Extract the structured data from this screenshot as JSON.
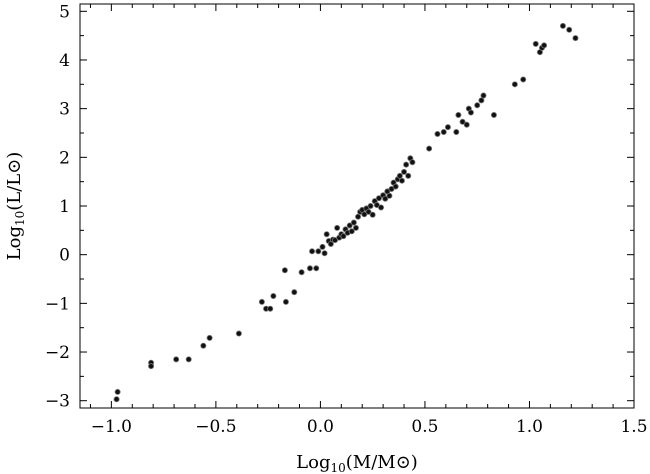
{
  "chart_data": {
    "type": "scatter",
    "title": "",
    "xlabel": "Log10(M/M⊙)",
    "ylabel": "Log10(L/L⊙)",
    "xlim": [
      -1.15,
      1.5
    ],
    "ylim": [
      -3.15,
      5.15
    ],
    "x_ticks": [
      -1.0,
      -0.5,
      0.0,
      0.5,
      1.0,
      1.5
    ],
    "x_tick_labels": [
      "−1.0",
      "−0.5",
      "0.0",
      "0.5",
      "1.0",
      "1.5"
    ],
    "y_ticks": [
      -3,
      -2,
      -1,
      0,
      1,
      2,
      3,
      4,
      5
    ],
    "y_tick_labels": [
      "−3",
      "−2",
      "−1",
      "0",
      "1",
      "2",
      "3",
      "4",
      "5"
    ],
    "grid": false,
    "legend": "none",
    "points": [
      {
        "x": -0.97,
        "y": -2.82
      },
      {
        "x": -0.975,
        "y": -2.97
      },
      {
        "x": -0.81,
        "y": -2.22
      },
      {
        "x": -0.81,
        "y": -2.29
      },
      {
        "x": -0.69,
        "y": -2.15
      },
      {
        "x": -0.63,
        "y": -2.15
      },
      {
        "x": -0.56,
        "y": -1.87
      },
      {
        "x": -0.53,
        "y": -1.71
      },
      {
        "x": -0.39,
        "y": -1.62
      },
      {
        "x": -0.28,
        "y": -0.97
      },
      {
        "x": -0.26,
        "y": -1.11
      },
      {
        "x": -0.24,
        "y": -1.11
      },
      {
        "x": -0.225,
        "y": -0.85
      },
      {
        "x": -0.165,
        "y": -0.97
      },
      {
        "x": -0.17,
        "y": -0.32
      },
      {
        "x": -0.125,
        "y": -0.77
      },
      {
        "x": -0.09,
        "y": -0.36
      },
      {
        "x": -0.05,
        "y": -0.28
      },
      {
        "x": -0.04,
        "y": 0.07
      },
      {
        "x": -0.02,
        "y": -0.28
      },
      {
        "x": -0.01,
        "y": 0.07
      },
      {
        "x": 0.01,
        "y": 0.16
      },
      {
        "x": 0.02,
        "y": 0.03
      },
      {
        "x": 0.03,
        "y": 0.42
      },
      {
        "x": 0.04,
        "y": 0.28
      },
      {
        "x": 0.05,
        "y": 0.22
      },
      {
        "x": 0.06,
        "y": 0.31
      },
      {
        "x": 0.07,
        "y": 0.3
      },
      {
        "x": 0.08,
        "y": 0.55
      },
      {
        "x": 0.09,
        "y": 0.35
      },
      {
        "x": 0.1,
        "y": 0.42
      },
      {
        "x": 0.11,
        "y": 0.38
      },
      {
        "x": 0.12,
        "y": 0.52
      },
      {
        "x": 0.13,
        "y": 0.45
      },
      {
        "x": 0.14,
        "y": 0.6
      },
      {
        "x": 0.15,
        "y": 0.48
      },
      {
        "x": 0.16,
        "y": 0.66
      },
      {
        "x": 0.17,
        "y": 0.55
      },
      {
        "x": 0.18,
        "y": 0.78
      },
      {
        "x": 0.19,
        "y": 0.88
      },
      {
        "x": 0.2,
        "y": 0.92
      },
      {
        "x": 0.21,
        "y": 0.83
      },
      {
        "x": 0.22,
        "y": 0.95
      },
      {
        "x": 0.23,
        "y": 0.88
      },
      {
        "x": 0.24,
        "y": 1.0
      },
      {
        "x": 0.25,
        "y": 0.82
      },
      {
        "x": 0.26,
        "y": 1.1
      },
      {
        "x": 0.27,
        "y": 1.02
      },
      {
        "x": 0.28,
        "y": 1.16
      },
      {
        "x": 0.29,
        "y": 0.97
      },
      {
        "x": 0.3,
        "y": 1.22
      },
      {
        "x": 0.31,
        "y": 1.15
      },
      {
        "x": 0.32,
        "y": 1.3
      },
      {
        "x": 0.33,
        "y": 1.21
      },
      {
        "x": 0.34,
        "y": 1.35
      },
      {
        "x": 0.35,
        "y": 1.48
      },
      {
        "x": 0.36,
        "y": 1.4
      },
      {
        "x": 0.37,
        "y": 1.55
      },
      {
        "x": 0.38,
        "y": 1.62
      },
      {
        "x": 0.39,
        "y": 1.52
      },
      {
        "x": 0.4,
        "y": 1.7
      },
      {
        "x": 0.41,
        "y": 1.85
      },
      {
        "x": 0.42,
        "y": 1.62
      },
      {
        "x": 0.43,
        "y": 1.98
      },
      {
        "x": 0.44,
        "y": 1.9
      },
      {
        "x": 0.52,
        "y": 2.18
      },
      {
        "x": 0.56,
        "y": 2.48
      },
      {
        "x": 0.59,
        "y": 2.52
      },
      {
        "x": 0.61,
        "y": 2.62
      },
      {
        "x": 0.65,
        "y": 2.52
      },
      {
        "x": 0.66,
        "y": 2.87
      },
      {
        "x": 0.68,
        "y": 2.73
      },
      {
        "x": 0.7,
        "y": 2.67
      },
      {
        "x": 0.71,
        "y": 3.0
      },
      {
        "x": 0.72,
        "y": 2.92
      },
      {
        "x": 0.75,
        "y": 3.07
      },
      {
        "x": 0.77,
        "y": 3.17
      },
      {
        "x": 0.78,
        "y": 3.27
      },
      {
        "x": 0.83,
        "y": 2.87
      },
      {
        "x": 0.93,
        "y": 3.5
      },
      {
        "x": 0.97,
        "y": 3.6
      },
      {
        "x": 1.03,
        "y": 4.33
      },
      {
        "x": 1.05,
        "y": 4.16
      },
      {
        "x": 1.06,
        "y": 4.25
      },
      {
        "x": 1.07,
        "y": 4.3
      },
      {
        "x": 1.16,
        "y": 4.7
      },
      {
        "x": 1.19,
        "y": 4.62
      },
      {
        "x": 1.22,
        "y": 4.45
      }
    ]
  }
}
